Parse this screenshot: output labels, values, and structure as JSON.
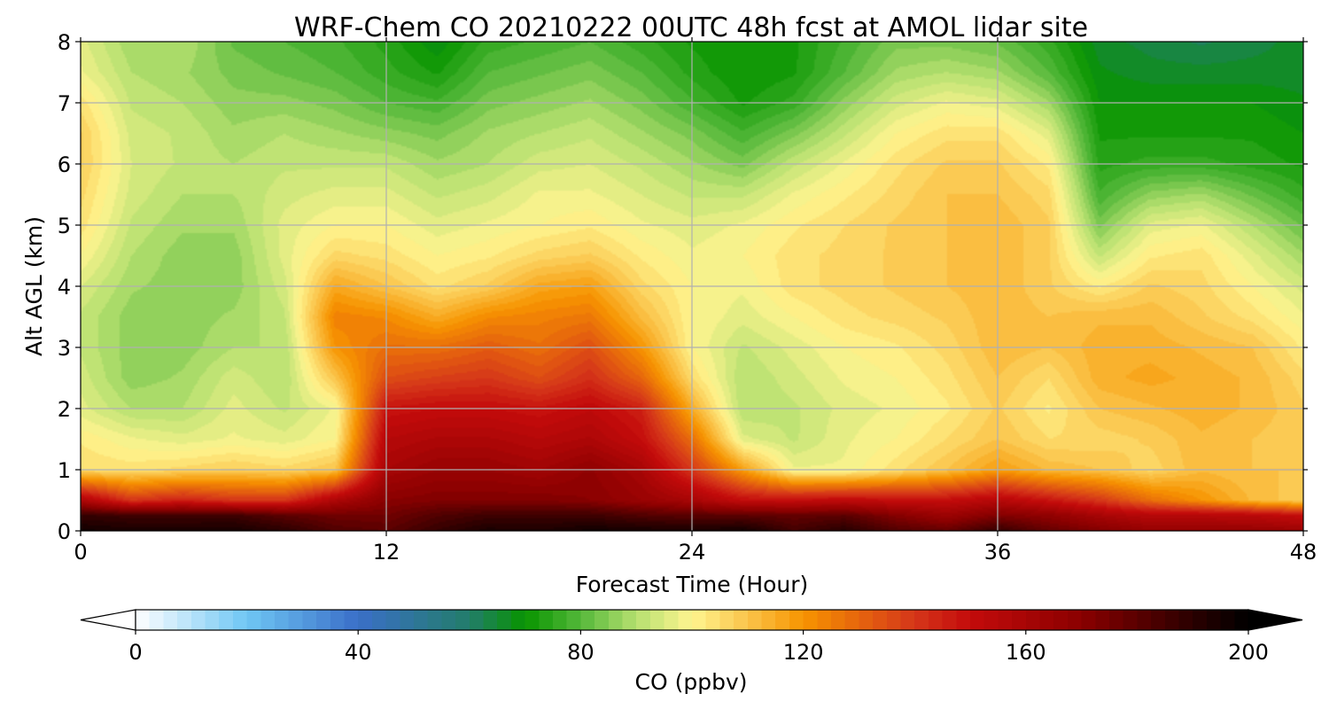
{
  "chart_data": {
    "type": "heatmap",
    "title": "WRF-Chem CO  20210222 00UTC 48h fcst at AMOL lidar site",
    "xlabel": "Forecast Time (Hour)",
    "ylabel": "Alt AGL (km)",
    "xlim": [
      0,
      48
    ],
    "ylim": [
      0,
      8
    ],
    "xticks": [
      0,
      12,
      24,
      36,
      48
    ],
    "yticks": [
      0,
      1,
      2,
      3,
      4,
      5,
      6,
      7,
      8
    ],
    "grid": true,
    "z_units": "ppbv",
    "x": [
      0,
      2,
      4,
      6,
      8,
      10,
      12,
      14,
      16,
      18,
      20,
      22,
      24,
      26,
      28,
      30,
      32,
      34,
      36,
      38,
      40,
      42,
      44,
      46,
      48
    ],
    "y": [
      0,
      0.25,
      0.5,
      1,
      1.5,
      2,
      2.5,
      3,
      3.5,
      4,
      4.5,
      5,
      5.5,
      6,
      6.5,
      7,
      7.5,
      8
    ],
    "z": [
      [
        196,
        194,
        194,
        195,
        190,
        182,
        180,
        188,
        194,
        193,
        196,
        195,
        194,
        196,
        185,
        191,
        182,
        178,
        188,
        178,
        172,
        166,
        166,
        166,
        164
      ],
      [
        188,
        186,
        186,
        186,
        180,
        176,
        175,
        182,
        186,
        186,
        186,
        182,
        180,
        180,
        178,
        180,
        171,
        164,
        172,
        168,
        160,
        155,
        155,
        154,
        150
      ],
      [
        158,
        140,
        145,
        140,
        140,
        158,
        170,
        172,
        172,
        172,
        170,
        165,
        160,
        150,
        150,
        152,
        150,
        150,
        155,
        148,
        140,
        128,
        120,
        112,
        108
      ],
      [
        105,
        104,
        106,
        108,
        106,
        110,
        160,
        165,
        165,
        162,
        168,
        160,
        140,
        118,
        98,
        98,
        104,
        110,
        118,
        112,
        110,
        106,
        112,
        110,
        110
      ],
      [
        102,
        98,
        96,
        98,
        96,
        100,
        155,
        158,
        158,
        155,
        158,
        150,
        128,
        96,
        92,
        97,
        100,
        105,
        110,
        105,
        106,
        108,
        112,
        110,
        108
      ],
      [
        96,
        90,
        90,
        96,
        92,
        98,
        148,
        150,
        150,
        148,
        152,
        145,
        115,
        90,
        92,
        96,
        98,
        102,
        108,
        102,
        110,
        112,
        114,
        112,
        108
      ],
      [
        94,
        86,
        88,
        94,
        90,
        110,
        135,
        138,
        140,
        135,
        142,
        130,
        105,
        90,
        94,
        98,
        100,
        104,
        110,
        105,
        114,
        116,
        114,
        112,
        106
      ],
      [
        92,
        86,
        86,
        90,
        90,
        120,
        128,
        128,
        132,
        128,
        135,
        120,
        100,
        92,
        96,
        100,
        102,
        106,
        112,
        110,
        114,
        114,
        112,
        110,
        102
      ],
      [
        92,
        86,
        86,
        88,
        92,
        124,
        122,
        115,
        122,
        124,
        126,
        112,
        100,
        96,
        100,
        104,
        106,
        108,
        112,
        110,
        112,
        112,
        108,
        104,
        98
      ],
      [
        95,
        88,
        86,
        86,
        94,
        116,
        110,
        104,
        108,
        116,
        118,
        106,
        100,
        98,
        104,
        106,
        108,
        110,
        112,
        108,
        102,
        108,
        106,
        100,
        94
      ],
      [
        100,
        90,
        86,
        86,
        96,
        106,
        104,
        100,
        102,
        106,
        108,
        102,
        98,
        100,
        104,
        106,
        108,
        110,
        112,
        108,
        92,
        102,
        104,
        96,
        88
      ],
      [
        104,
        92,
        88,
        88,
        96,
        100,
        100,
        96,
        98,
        100,
        102,
        98,
        96,
        98,
        102,
        105,
        108,
        110,
        112,
        108,
        84,
        96,
        98,
        90,
        82
      ],
      [
        106,
        94,
        90,
        90,
        94,
        96,
        96,
        92,
        94,
        98,
        98,
        95,
        92,
        92,
        98,
        102,
        106,
        110,
        110,
        106,
        78,
        86,
        88,
        82,
        76
      ],
      [
        108,
        95,
        92,
        90,
        92,
        92,
        92,
        88,
        90,
        94,
        95,
        92,
        88,
        84,
        92,
        98,
        104,
        108,
        108,
        102,
        74,
        76,
        76,
        74,
        72
      ],
      [
        108,
        94,
        92,
        88,
        90,
        88,
        86,
        84,
        88,
        90,
        92,
        88,
        84,
        78,
        84,
        92,
        100,
        104,
        104,
        96,
        72,
        72,
        72,
        72,
        70
      ],
      [
        104,
        92,
        90,
        86,
        86,
        84,
        80,
        78,
        84,
        86,
        88,
        84,
        78,
        72,
        76,
        86,
        94,
        98,
        96,
        88,
        70,
        70,
        70,
        70,
        68
      ],
      [
        98,
        90,
        88,
        84,
        82,
        80,
        76,
        72,
        80,
        82,
        84,
        80,
        74,
        70,
        72,
        80,
        88,
        90,
        88,
        80,
        68,
        66,
        66,
        66,
        66
      ],
      [
        96,
        88,
        90,
        82,
        80,
        78,
        74,
        68,
        76,
        78,
        80,
        76,
        72,
        70,
        72,
        78,
        84,
        84,
        82,
        76,
        66,
        64,
        62,
        64,
        66
      ]
    ],
    "colorbar": {
      "label": "CO  (ppbv)",
      "ticks": [
        0,
        40,
        80,
        120,
        160,
        200
      ],
      "vmin": 0,
      "vmax": 200,
      "extend": "both",
      "colors": {
        "0": "#ffffff",
        "20": "#6fc6f4",
        "40": "#3a6fc8",
        "60": "#227d6a",
        "70": "#089400",
        "80": "#55b83a",
        "90": "#b6e070",
        "100": "#fff590",
        "110": "#fac44a",
        "120": "#f79400",
        "140": "#d5361a",
        "150": "#c40b0b",
        "170": "#8a0000",
        "190": "#2a0000",
        "200": "#000000"
      }
    }
  }
}
